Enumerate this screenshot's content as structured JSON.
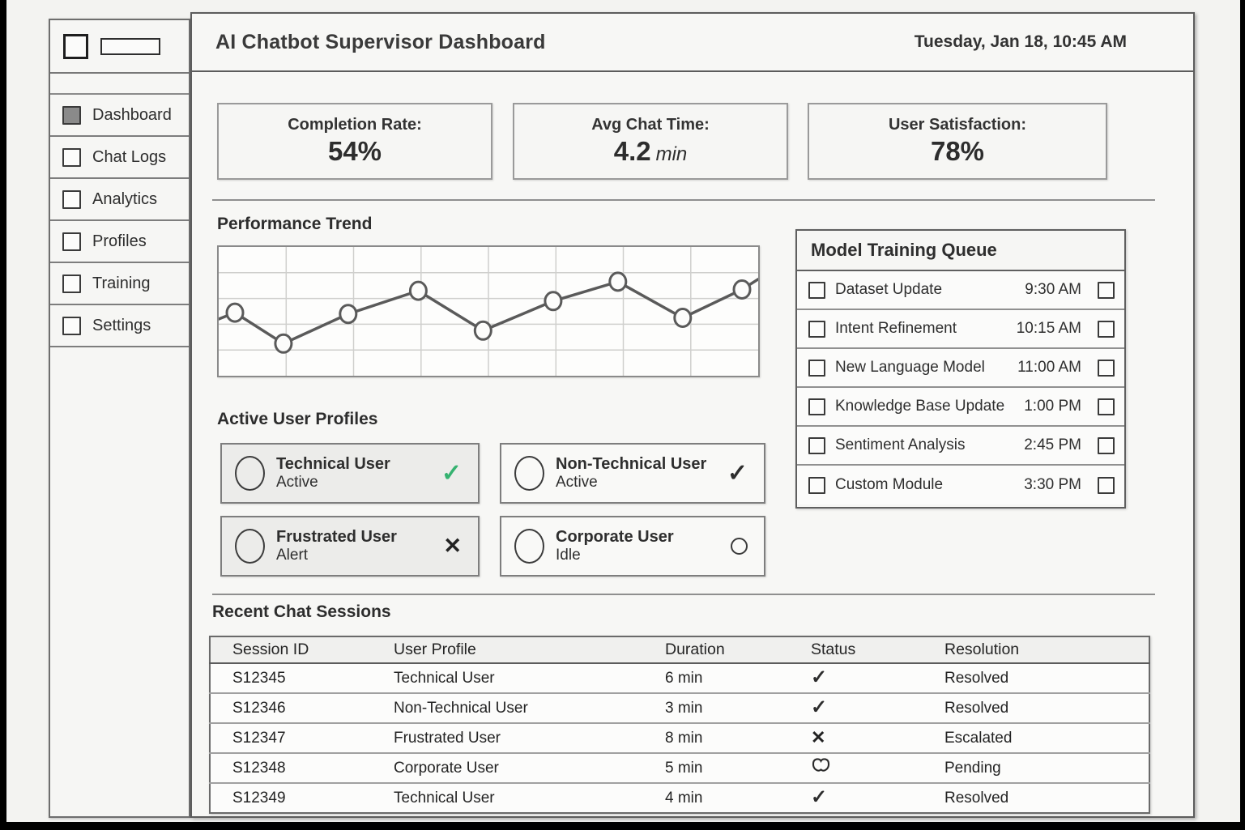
{
  "header": {
    "title": "AI Chatbot Supervisor Dashboard",
    "date": "Tuesday, Jan 18, 10:45 AM"
  },
  "sidebar": {
    "items": [
      {
        "label": "Dashboard",
        "active": true
      },
      {
        "label": "Chat Logs",
        "active": false
      },
      {
        "label": "Analytics",
        "active": false
      },
      {
        "label": "Profiles",
        "active": false
      },
      {
        "label": "Training",
        "active": false
      },
      {
        "label": "Settings",
        "active": false
      }
    ]
  },
  "stats": [
    {
      "label": "Completion Rate:",
      "value": "54%",
      "unit": ""
    },
    {
      "label": "Avg Chat Time:",
      "value": "4.2",
      "unit": "min"
    },
    {
      "label": "User Satisfaction:",
      "value": "78%",
      "unit": ""
    }
  ],
  "chart_data": {
    "type": "line",
    "title": "Performance Trend",
    "xlabel": "",
    "ylabel": "",
    "axis_tick_labels": "none (wireframe grid only)",
    "ylim": [
      0,
      100
    ],
    "grid": {
      "columns": 8,
      "rows": 5,
      "on": true
    },
    "legend": "none",
    "x": [
      0,
      3,
      12,
      24,
      37,
      49,
      62,
      74,
      86,
      97,
      100
    ],
    "values": [
      44,
      49,
      25,
      48,
      66,
      35,
      58,
      73,
      45,
      67,
      75
    ],
    "marker_indices": [
      1,
      2,
      3,
      4,
      5,
      6,
      7,
      8,
      9
    ]
  },
  "training_queue": {
    "title": "Model Training Queue",
    "items": [
      {
        "label": "Dataset Update",
        "time": "9:30 AM"
      },
      {
        "label": "Intent Refinement",
        "time": "10:15 AM"
      },
      {
        "label": "New Language Model",
        "time": "11:00 AM"
      },
      {
        "label": "Knowledge Base Update",
        "time": "1:00 PM"
      },
      {
        "label": "Sentiment Analysis",
        "time": "2:45 PM"
      },
      {
        "label": "Custom Module",
        "time": "3:30 PM"
      }
    ]
  },
  "profiles": {
    "title": "Active User Profiles",
    "cards": [
      {
        "name": "Technical User",
        "status": "Active",
        "icon": "check-green",
        "shaded": true
      },
      {
        "name": "Non-Technical User",
        "status": "Active",
        "icon": "check",
        "shaded": false
      },
      {
        "name": "Frustrated User",
        "status": "Alert",
        "icon": "cross",
        "shaded": true
      },
      {
        "name": "Corporate User",
        "status": "Idle",
        "icon": "circle",
        "shaded": false
      }
    ]
  },
  "sessions": {
    "title": "Recent Chat Sessions",
    "columns": [
      "Session ID",
      "User Profile",
      "Duration",
      "Status",
      "Resolution"
    ],
    "rows": [
      {
        "id": "S12345",
        "profile": "Technical User",
        "duration": "6 min",
        "status": "check",
        "resolution": "Resolved"
      },
      {
        "id": "S12346",
        "profile": "Non-Technical User",
        "duration": "3 min",
        "status": "check",
        "resolution": "Resolved"
      },
      {
        "id": "S12347",
        "profile": "Frustrated User",
        "duration": "8 min",
        "status": "cross",
        "resolution": "Escalated"
      },
      {
        "id": "S12348",
        "profile": "Corporate User",
        "duration": "5 min",
        "status": "pending",
        "resolution": "Pending"
      },
      {
        "id": "S12349",
        "profile": "Technical User",
        "duration": "4 min",
        "status": "check",
        "resolution": "Resolved"
      }
    ]
  },
  "colors": {
    "accent_green": "#35b270",
    "ink": "#2e2e2e",
    "line": "#5a5a5a",
    "grid": "#cfcfcd"
  }
}
